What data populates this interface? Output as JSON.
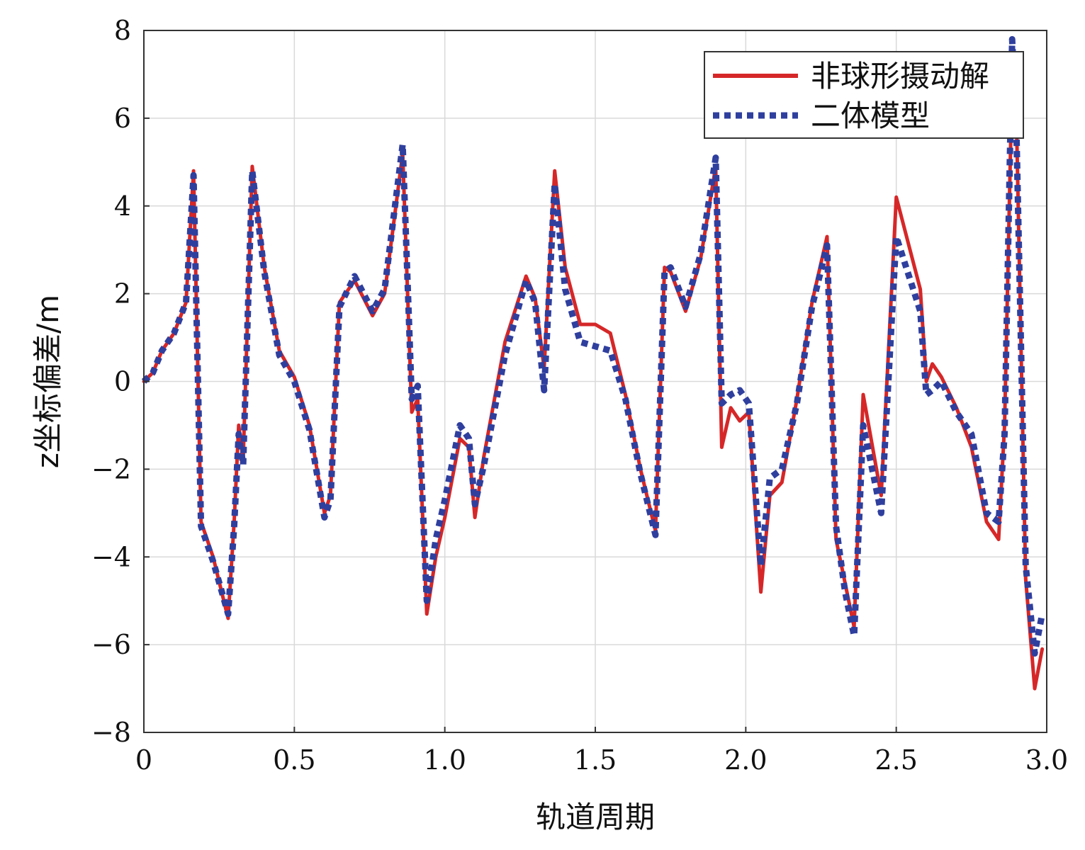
{
  "chart_data": {
    "type": "line",
    "xlabel": "轨道周期",
    "ylabel": "z坐标偏差/m",
    "xlim": [
      0,
      3.0
    ],
    "ylim": [
      -8,
      8
    ],
    "xticks": [
      0,
      0.5,
      1.0,
      1.5,
      2.0,
      2.5,
      3.0
    ],
    "xtick_labels": [
      "0",
      "0.5",
      "1.0",
      "1.5",
      "2.0",
      "2.5",
      "3.0"
    ],
    "yticks": [
      -8,
      -6,
      -4,
      -2,
      0,
      2,
      4,
      6,
      8
    ],
    "ytick_labels": [
      "−8",
      "−6",
      "−4",
      "−2",
      "0",
      "2",
      "4",
      "6",
      "8"
    ],
    "grid": true,
    "legend_position": "top-right",
    "series": [
      {
        "name": "非球形摄动解",
        "color": "#d62728",
        "style": "solid",
        "x": [
          0,
          0.03,
          0.06,
          0.1,
          0.14,
          0.165,
          0.19,
          0.23,
          0.28,
          0.3,
          0.315,
          0.33,
          0.36,
          0.4,
          0.45,
          0.5,
          0.55,
          0.6,
          0.62,
          0.65,
          0.7,
          0.76,
          0.8,
          0.86,
          0.89,
          0.91,
          0.94,
          0.97,
          1.0,
          1.05,
          1.08,
          1.1,
          1.13,
          1.2,
          1.27,
          1.3,
          1.33,
          1.365,
          1.4,
          1.45,
          1.5,
          1.55,
          1.6,
          1.65,
          1.7,
          1.73,
          1.75,
          1.8,
          1.85,
          1.9,
          1.92,
          1.95,
          1.98,
          2.01,
          2.05,
          2.08,
          2.12,
          2.17,
          2.22,
          2.27,
          2.3,
          2.33,
          2.36,
          2.39,
          2.45,
          2.5,
          2.58,
          2.6,
          2.62,
          2.65,
          2.7,
          2.75,
          2.8,
          2.84,
          2.86,
          2.885,
          2.9,
          2.93,
          2.96,
          2.985
        ],
        "y": [
          0,
          0.2,
          0.7,
          1.1,
          1.8,
          4.8,
          -3.2,
          -4.0,
          -5.4,
          -3.2,
          -1.0,
          -1.8,
          4.9,
          2.6,
          0.7,
          0.1,
          -1.0,
          -3.0,
          -2.6,
          1.8,
          2.3,
          1.5,
          2.0,
          5.2,
          -0.7,
          -0.4,
          -5.3,
          -4.0,
          -3.1,
          -1.3,
          -1.5,
          -3.1,
          -1.7,
          0.9,
          2.4,
          1.9,
          0.3,
          4.8,
          2.6,
          1.3,
          1.3,
          1.1,
          -0.3,
          -2.0,
          -3.4,
          2.6,
          2.5,
          1.6,
          2.8,
          4.9,
          -1.5,
          -0.6,
          -0.9,
          -0.7,
          -4.8,
          -2.6,
          -2.3,
          -0.4,
          1.8,
          3.3,
          -3.6,
          -4.6,
          -5.6,
          -0.3,
          -2.6,
          4.2,
          2.1,
          0.0,
          0.4,
          0.1,
          -0.6,
          -1.5,
          -3.2,
          -3.6,
          -1.0,
          7.0,
          5.8,
          -4.5,
          -7.0,
          -6.1
        ]
      },
      {
        "name": "二体模型",
        "color": "#2f3f9e",
        "style": "dotted",
        "x": [
          0,
          0.03,
          0.06,
          0.1,
          0.14,
          0.165,
          0.19,
          0.23,
          0.28,
          0.3,
          0.315,
          0.33,
          0.36,
          0.4,
          0.45,
          0.5,
          0.55,
          0.6,
          0.62,
          0.65,
          0.7,
          0.76,
          0.8,
          0.86,
          0.89,
          0.91,
          0.94,
          0.97,
          1.0,
          1.05,
          1.08,
          1.1,
          1.13,
          1.2,
          1.27,
          1.3,
          1.33,
          1.365,
          1.4,
          1.45,
          1.5,
          1.55,
          1.6,
          1.65,
          1.7,
          1.73,
          1.75,
          1.8,
          1.85,
          1.9,
          1.92,
          1.95,
          1.98,
          2.01,
          2.05,
          2.08,
          2.12,
          2.17,
          2.22,
          2.27,
          2.3,
          2.33,
          2.36,
          2.39,
          2.45,
          2.5,
          2.58,
          2.6,
          2.62,
          2.65,
          2.7,
          2.75,
          2.8,
          2.84,
          2.86,
          2.885,
          2.9,
          2.93,
          2.96,
          2.985
        ],
        "y": [
          0,
          0.2,
          0.7,
          1.1,
          1.8,
          4.7,
          -3.3,
          -4.1,
          -5.3,
          -3.3,
          -1.2,
          -1.9,
          4.8,
          2.5,
          0.6,
          0.0,
          -1.1,
          -3.1,
          -2.7,
          1.7,
          2.4,
          1.6,
          2.1,
          5.4,
          -0.4,
          -0.1,
          -5.0,
          -3.6,
          -2.7,
          -1.0,
          -1.3,
          -2.8,
          -1.9,
          0.6,
          2.3,
          1.8,
          -0.2,
          4.5,
          2.1,
          0.9,
          0.8,
          0.7,
          -0.4,
          -2.1,
          -3.5,
          2.5,
          2.6,
          1.7,
          2.9,
          5.1,
          -0.5,
          -0.3,
          -0.2,
          -0.5,
          -4.2,
          -2.2,
          -2.0,
          -0.5,
          1.7,
          3.1,
          -3.3,
          -4.8,
          -5.8,
          -1.0,
          -3.0,
          3.3,
          1.6,
          -0.3,
          -0.2,
          0.0,
          -0.7,
          -1.2,
          -3.0,
          -3.2,
          -1.2,
          7.8,
          5.5,
          -4.2,
          -6.2,
          -5.3
        ]
      }
    ]
  },
  "colors": {
    "background": "#ffffff",
    "grid": "#d9d9d9",
    "axis": "#333333"
  }
}
